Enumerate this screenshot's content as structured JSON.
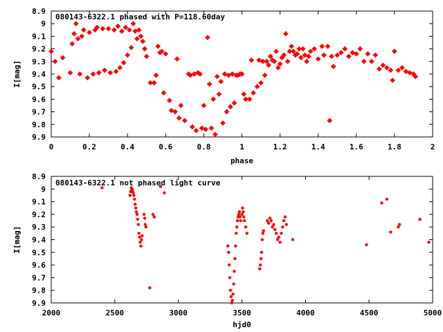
{
  "chart_data": [
    {
      "type": "scatter",
      "title": "080143-6322.1 phased with P=118.60day",
      "xlabel": "phase",
      "ylabel": "I[mag]",
      "xlim": [
        0,
        2
      ],
      "ylim": [
        9.9,
        8.9
      ],
      "y_inverted": true,
      "grid": false,
      "color": "#ff0000",
      "xticks": [
        "0",
        "0.2",
        "0.4",
        "0.6",
        "0.8",
        "1",
        "1.2",
        "1.4",
        "1.6",
        "1.8",
        "2"
      ],
      "xtick_values": [
        0,
        0.2,
        0.4,
        0.6,
        0.8,
        1.0,
        1.2,
        1.4,
        1.6,
        1.8,
        2.0
      ],
      "yticks": [
        "8.9",
        "9",
        "9.1",
        "9.2",
        "9.3",
        "9.4",
        "9.5",
        "9.6",
        "9.7",
        "9.8",
        "9.9"
      ],
      "ytick_values": [
        8.9,
        9.0,
        9.1,
        9.2,
        9.3,
        9.4,
        9.5,
        9.6,
        9.7,
        9.8,
        9.9
      ],
      "points": [
        [
          0.0,
          9.22
        ],
        [
          0.02,
          9.3
        ],
        [
          0.04,
          9.43
        ],
        [
          0.06,
          9.27
        ],
        [
          0.1,
          9.39
        ],
        [
          0.11,
          9.16
        ],
        [
          0.12,
          9.08
        ],
        [
          0.13,
          9.0
        ],
        [
          0.14,
          9.12
        ],
        [
          0.15,
          9.4
        ],
        [
          0.16,
          9.1
        ],
        [
          0.17,
          9.05
        ],
        [
          0.19,
          9.43
        ],
        [
          0.2,
          9.07
        ],
        [
          0.22,
          9.4
        ],
        [
          0.23,
          9.05
        ],
        [
          0.24,
          9.03
        ],
        [
          0.25,
          9.39
        ],
        [
          0.27,
          9.04
        ],
        [
          0.28,
          9.37
        ],
        [
          0.3,
          9.04
        ],
        [
          0.31,
          9.39
        ],
        [
          0.33,
          9.05
        ],
        [
          0.34,
          9.38
        ],
        [
          0.35,
          9.02
        ],
        [
          0.36,
          9.35
        ],
        [
          0.37,
          9.06
        ],
        [
          0.38,
          9.31
        ],
        [
          0.39,
          9.03
        ],
        [
          0.4,
          9.25
        ],
        [
          0.41,
          9.05
        ],
        [
          0.42,
          9.19
        ],
        [
          0.43,
          9.0
        ],
        [
          0.44,
          9.06
        ],
        [
          0.45,
          9.12
        ],
        [
          0.46,
          9.05
        ],
        [
          0.47,
          9.1
        ],
        [
          0.48,
          9.14
        ],
        [
          0.49,
          9.2
        ],
        [
          0.5,
          9.26
        ],
        [
          0.52,
          9.47
        ],
        [
          0.54,
          9.47
        ],
        [
          0.55,
          9.41
        ],
        [
          0.56,
          9.18
        ],
        [
          0.57,
          9.23
        ],
        [
          0.58,
          9.22
        ],
        [
          0.59,
          9.55
        ],
        [
          0.6,
          9.24
        ],
        [
          0.62,
          9.61
        ],
        [
          0.63,
          9.69
        ],
        [
          0.65,
          9.7
        ],
        [
          0.66,
          9.28
        ],
        [
          0.67,
          9.75
        ],
        [
          0.68,
          9.65
        ],
        [
          0.7,
          9.77
        ],
        [
          0.72,
          9.4
        ],
        [
          0.73,
          9.41
        ],
        [
          0.74,
          9.82
        ],
        [
          0.75,
          9.4
        ],
        [
          0.76,
          9.85
        ],
        [
          0.77,
          9.39
        ],
        [
          0.78,
          9.4
        ],
        [
          0.79,
          9.83
        ],
        [
          0.8,
          9.65
        ],
        [
          0.81,
          9.84
        ],
        [
          0.82,
          9.11
        ],
        [
          0.83,
          9.48
        ],
        [
          0.84,
          9.83
        ],
        [
          0.85,
          9.6
        ],
        [
          0.86,
          9.88
        ],
        [
          0.87,
          9.42
        ],
        [
          0.88,
          9.56
        ],
        [
          0.89,
          9.46
        ],
        [
          0.9,
          9.79
        ],
        [
          0.91,
          9.4
        ],
        [
          0.92,
          9.7
        ],
        [
          0.93,
          9.41
        ],
        [
          0.94,
          9.66
        ],
        [
          0.95,
          9.4
        ],
        [
          0.96,
          9.63
        ],
        [
          0.97,
          9.41
        ],
        [
          0.98,
          9.41
        ],
        [
          0.99,
          9.4
        ],
        [
          1.0,
          9.4
        ],
        [
          1.01,
          9.56
        ],
        [
          1.02,
          9.6
        ],
        [
          1.04,
          9.6
        ],
        [
          1.05,
          9.29
        ],
        [
          1.06,
          9.55
        ],
        [
          1.08,
          9.5
        ],
        [
          1.09,
          9.29
        ],
        [
          1.1,
          9.47
        ],
        [
          1.11,
          9.3
        ],
        [
          1.12,
          9.41
        ],
        [
          1.13,
          9.3
        ],
        [
          1.14,
          9.33
        ],
        [
          1.15,
          9.26
        ],
        [
          1.16,
          9.29
        ],
        [
          1.17,
          9.3
        ],
        [
          1.18,
          9.22
        ],
        [
          1.19,
          9.35
        ],
        [
          1.2,
          9.32
        ],
        [
          1.21,
          9.27
        ],
        [
          1.22,
          9.25
        ],
        [
          1.23,
          9.08
        ],
        [
          1.24,
          9.3
        ],
        [
          1.25,
          9.22
        ],
        [
          1.26,
          9.18
        ],
        [
          1.27,
          9.22
        ],
        [
          1.28,
          9.25
        ],
        [
          1.29,
          9.24
        ],
        [
          1.3,
          9.2
        ],
        [
          1.31,
          9.27
        ],
        [
          1.32,
          9.2
        ],
        [
          1.33,
          9.25
        ],
        [
          1.34,
          9.3
        ],
        [
          1.35,
          9.26
        ],
        [
          1.36,
          9.22
        ],
        [
          1.38,
          9.2
        ],
        [
          1.4,
          9.28
        ],
        [
          1.42,
          9.18
        ],
        [
          1.43,
          9.25
        ],
        [
          1.45,
          9.18
        ],
        [
          1.46,
          9.77
        ],
        [
          1.47,
          9.26
        ],
        [
          1.48,
          9.34
        ],
        [
          1.5,
          9.25
        ],
        [
          1.52,
          9.23
        ],
        [
          1.54,
          9.2
        ],
        [
          1.56,
          9.26
        ],
        [
          1.58,
          9.23
        ],
        [
          1.6,
          9.24
        ],
        [
          1.62,
          9.2
        ],
        [
          1.64,
          9.3
        ],
        [
          1.66,
          9.24
        ],
        [
          1.68,
          9.3
        ],
        [
          1.7,
          9.25
        ],
        [
          1.72,
          9.36
        ],
        [
          1.74,
          9.33
        ],
        [
          1.76,
          9.35
        ],
        [
          1.78,
          9.37
        ],
        [
          1.79,
          9.45
        ],
        [
          1.8,
          9.22
        ],
        [
          1.82,
          9.37
        ],
        [
          1.84,
          9.35
        ],
        [
          1.86,
          9.38
        ],
        [
          1.88,
          9.39
        ],
        [
          1.9,
          9.4
        ],
        [
          1.91,
          9.42
        ]
      ]
    },
    {
      "type": "scatter",
      "title": "080143-6322.1 not phased light curve",
      "xlabel": "hjd0",
      "ylabel": "I[mag]",
      "xlim": [
        2000,
        5000
      ],
      "ylim": [
        9.9,
        8.9
      ],
      "y_inverted": true,
      "grid": false,
      "color": "#ff0000",
      "xticks": [
        "2000",
        "2500",
        "3000",
        "3500",
        "4000",
        "4500",
        "5000"
      ],
      "xtick_values": [
        2000,
        2500,
        3000,
        3500,
        4000,
        4500,
        5000
      ],
      "yticks": [
        "8.9",
        "9",
        "9.1",
        "9.2",
        "9.3",
        "9.4",
        "9.5",
        "9.6",
        "9.7",
        "9.8",
        "9.9"
      ],
      "ytick_values": [
        8.9,
        9.0,
        9.1,
        9.2,
        9.3,
        9.4,
        9.5,
        9.6,
        9.7,
        9.8,
        9.9
      ],
      "points": [
        [
          2400,
          8.99
        ],
        [
          2620,
          9.05
        ],
        [
          2625,
          9.02
        ],
        [
          2630,
          8.99
        ],
        [
          2635,
          9.0
        ],
        [
          2640,
          9.01
        ],
        [
          2645,
          9.03
        ],
        [
          2650,
          9.05
        ],
        [
          2655,
          9.08
        ],
        [
          2660,
          9.12
        ],
        [
          2665,
          9.15
        ],
        [
          2670,
          9.18
        ],
        [
          2675,
          9.2
        ],
        [
          2680,
          9.24
        ],
        [
          2685,
          9.28
        ],
        [
          2690,
          9.35
        ],
        [
          2695,
          9.38
        ],
        [
          2700,
          9.42
        ],
        [
          2705,
          9.45
        ],
        [
          2710,
          9.4
        ],
        [
          2715,
          9.37
        ],
        [
          2730,
          9.2
        ],
        [
          2735,
          9.23
        ],
        [
          2740,
          9.28
        ],
        [
          2745,
          9.3
        ],
        [
          2775,
          9.78
        ],
        [
          2800,
          9.2
        ],
        [
          2810,
          9.22
        ],
        [
          2860,
          8.98
        ],
        [
          2890,
          9.03
        ],
        [
          3390,
          9.45
        ],
        [
          3395,
          9.5
        ],
        [
          3400,
          9.6
        ],
        [
          3405,
          9.7
        ],
        [
          3410,
          9.8
        ],
        [
          3415,
          9.85
        ],
        [
          3420,
          9.9
        ],
        [
          3425,
          9.88
        ],
        [
          3430,
          9.83
        ],
        [
          3435,
          9.75
        ],
        [
          3440,
          9.65
        ],
        [
          3445,
          9.55
        ],
        [
          3450,
          9.45
        ],
        [
          3455,
          9.35
        ],
        [
          3460,
          9.3
        ],
        [
          3465,
          9.25
        ],
        [
          3470,
          9.22
        ],
        [
          3475,
          9.2
        ],
        [
          3480,
          9.18
        ],
        [
          3485,
          9.22
        ],
        [
          3490,
          9.25
        ],
        [
          3500,
          9.2
        ],
        [
          3505,
          9.15
        ],
        [
          3510,
          9.18
        ],
        [
          3515,
          9.22
        ],
        [
          3520,
          9.25
        ],
        [
          3530,
          9.3
        ],
        [
          3540,
          9.35
        ],
        [
          3640,
          9.63
        ],
        [
          3645,
          9.6
        ],
        [
          3650,
          9.55
        ],
        [
          3655,
          9.5
        ],
        [
          3660,
          9.4
        ],
        [
          3665,
          9.35
        ],
        [
          3670,
          9.33
        ],
        [
          3700,
          9.25
        ],
        [
          3710,
          9.27
        ],
        [
          3720,
          9.23
        ],
        [
          3730,
          9.25
        ],
        [
          3740,
          9.3
        ],
        [
          3750,
          9.28
        ],
        [
          3760,
          9.32
        ],
        [
          3770,
          9.35
        ],
        [
          3780,
          9.4
        ],
        [
          3790,
          9.38
        ],
        [
          3800,
          9.42
        ],
        [
          3810,
          9.35
        ],
        [
          3820,
          9.3
        ],
        [
          3830,
          9.25
        ],
        [
          3840,
          9.22
        ],
        [
          3850,
          9.28
        ],
        [
          3900,
          9.4
        ],
        [
          4480,
          9.44
        ],
        [
          4600,
          9.11
        ],
        [
          4640,
          9.08
        ],
        [
          4670,
          9.34
        ],
        [
          4730,
          9.3
        ],
        [
          4740,
          9.28
        ],
        [
          4900,
          9.24
        ],
        [
          4970,
          9.42
        ]
      ]
    }
  ]
}
